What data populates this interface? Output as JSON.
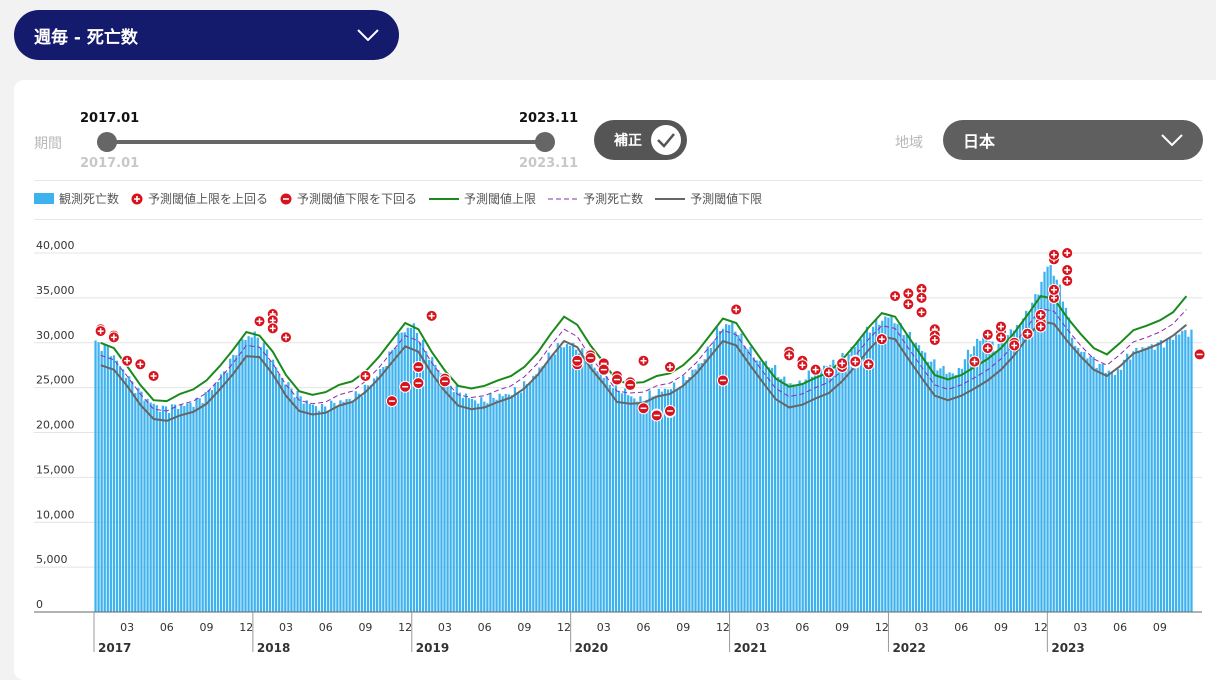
{
  "header": {
    "dropdown_label": "週毎 - 死亡数"
  },
  "controls": {
    "period_label": "期間",
    "range_start": "2017.01",
    "range_end": "2023.11",
    "range_start_sub": "2017.01",
    "range_end_sub": "2023.11",
    "correction_label": "補正",
    "region_label": "地域",
    "region_value": "日本"
  },
  "colors": {
    "observed": "#3db2ef",
    "upper": "#1a8a1a",
    "predicted": "#8e2cab",
    "lower": "#666666",
    "marker": "#d7141e"
  },
  "legend": [
    {
      "key": "observed",
      "label": "観測死亡数",
      "icon": "bar-swatch"
    },
    {
      "key": "above",
      "label": "予測閾値上限を上回る",
      "icon": "plus-circle-icon"
    },
    {
      "key": "below",
      "label": "予測閾値下限を下回る",
      "icon": "minus-circle-icon"
    },
    {
      "key": "upper",
      "label": "予測閾値上限",
      "icon": "solid-line"
    },
    {
      "key": "predicted",
      "label": "予測死亡数",
      "icon": "dashed-line"
    },
    {
      "key": "lower",
      "label": "予測閾値下限",
      "icon": "solid-line"
    }
  ],
  "chart_data": {
    "type": "bar",
    "title": "",
    "xlabel": "",
    "ylabel": "",
    "ylim": [
      0,
      40000
    ],
    "yticks": [
      0,
      5000,
      10000,
      15000,
      20000,
      25000,
      30000,
      35000,
      40000
    ],
    "ytick_labels": [
      "0",
      "5,000",
      "10,000",
      "15,000",
      "20,000",
      "25,000",
      "30,000",
      "35,000",
      "40,000"
    ],
    "x_start": "2017-01",
    "x_end": "2023-11",
    "month_ticks": [
      "03",
      "06",
      "09",
      "12"
    ],
    "years": [
      "2017",
      "2018",
      "2019",
      "2020",
      "2021",
      "2022",
      "2023"
    ],
    "grid": true,
    "legend_position": "top-left",
    "series_names": [
      "観測死亡数",
      "予測閾値上限",
      "予測死亡数",
      "予測閾値下限"
    ],
    "observed_monthly_weekly_avg": [
      30000,
      29300,
      27100,
      25000,
      23500,
      22600,
      22900,
      23100,
      23700,
      25300,
      27300,
      30200,
      31000,
      29000,
      26200,
      24500,
      23300,
      22700,
      23200,
      23600,
      24400,
      25800,
      27900,
      31000,
      32000,
      29000,
      26800,
      25000,
      24000,
      23400,
      23900,
      24200,
      24700,
      26000,
      28000,
      29600,
      29800,
      28500,
      26800,
      25300,
      24500,
      23500,
      24200,
      24800,
      25200,
      26600,
      28300,
      31400,
      32200,
      30000,
      28000,
      27500,
      25800,
      25200,
      26500,
      27400,
      27800,
      29000,
      31000,
      32200,
      33000,
      31400,
      30000,
      28000,
      27000,
      26400,
      29000,
      30800,
      29500,
      31000,
      32500,
      35000,
      39000,
      35500,
      29500,
      28500,
      27300,
      26400,
      28600,
      29400,
      29700,
      30200,
      31200
    ],
    "upper_monthly": [
      30000,
      29400,
      27400,
      25300,
      23600,
      23500,
      24300,
      24800,
      25800,
      27400,
      29200,
      31200,
      30800,
      29000,
      26400,
      24600,
      24200,
      24500,
      25300,
      25700,
      26800,
      28400,
      30300,
      32200,
      31500,
      29000,
      26900,
      25200,
      24900,
      25200,
      25800,
      26300,
      27300,
      28900,
      31000,
      32900,
      32000,
      29700,
      27800,
      25700,
      25500,
      25600,
      26300,
      26600,
      27500,
      28900,
      30800,
      32700,
      32200,
      30000,
      27900,
      26000,
      25100,
      25400,
      26100,
      26700,
      28100,
      29800,
      31700,
      33300,
      32900,
      30700,
      28500,
      26400,
      25900,
      26400,
      27300,
      28200,
      29400,
      31100,
      33100,
      35200,
      34900,
      32800,
      31000,
      29400,
      28700,
      30000,
      31400,
      31900,
      32500,
      33400,
      35200
    ],
    "predicted_monthly": [
      28600,
      28100,
      26300,
      24300,
      22600,
      22400,
      23100,
      23500,
      24400,
      26000,
      27700,
      29700,
      29500,
      27700,
      25300,
      23600,
      23200,
      23400,
      24200,
      24600,
      25700,
      27200,
      29000,
      30800,
      30200,
      27800,
      25800,
      24200,
      23900,
      24100,
      24700,
      25200,
      26200,
      27700,
      29700,
      31500,
      30700,
      28400,
      26600,
      24600,
      24400,
      24500,
      25200,
      25500,
      26400,
      27800,
      29600,
      31400,
      30900,
      28800,
      26800,
      24900,
      24000,
      24300,
      25000,
      25600,
      26900,
      28600,
      30400,
      31900,
      31600,
      29400,
      27300,
      25300,
      24800,
      25300,
      26100,
      27000,
      28200,
      29800,
      31800,
      33800,
      33500,
      31500,
      29700,
      28200,
      27500,
      28700,
      30100,
      30600,
      31200,
      32100,
      33700
    ],
    "lower_monthly": [
      27500,
      27000,
      25200,
      23100,
      21500,
      21300,
      21900,
      22300,
      23200,
      24800,
      26500,
      28500,
      28400,
      26500,
      24100,
      22400,
      22000,
      22200,
      23000,
      23400,
      24500,
      26000,
      27800,
      29600,
      29000,
      26600,
      24600,
      23000,
      22600,
      22800,
      23400,
      23900,
      24900,
      26400,
      28400,
      30200,
      29500,
      27200,
      25400,
      23400,
      23200,
      23300,
      24000,
      24300,
      25200,
      26600,
      28400,
      30200,
      29700,
      27600,
      25600,
      23700,
      22800,
      23100,
      23800,
      24400,
      25700,
      27400,
      29200,
      30700,
      30400,
      28200,
      26100,
      24100,
      23600,
      24100,
      24900,
      25800,
      27000,
      28600,
      30600,
      32400,
      32100,
      30200,
      28500,
      27000,
      26300,
      27400,
      28800,
      29300,
      29900,
      30800,
      32000
    ],
    "above_markers": [
      {
        "x": "2017-01",
        "y": 31500
      },
      {
        "x": "2017-01",
        "y": 31300
      },
      {
        "x": "2017-02",
        "y": 30800
      },
      {
        "x": "2017-02",
        "y": 30600
      },
      {
        "x": "2017-03",
        "y": 28000
      },
      {
        "x": "2017-04",
        "y": 27600
      },
      {
        "x": "2017-05",
        "y": 26300
      },
      {
        "x": "2018-01",
        "y": 32400
      },
      {
        "x": "2018-02",
        "y": 33200
      },
      {
        "x": "2018-02",
        "y": 32500
      },
      {
        "x": "2018-02",
        "y": 31600
      },
      {
        "x": "2018-03",
        "y": 30600
      },
      {
        "x": "2018-09",
        "y": 26300
      },
      {
        "x": "2019-02",
        "y": 33000
      },
      {
        "x": "2020-08",
        "y": 27300
      },
      {
        "x": "2020-06",
        "y": 28000
      },
      {
        "x": "2020-08",
        "y": 27300
      },
      {
        "x": "2021-01",
        "y": 33700
      },
      {
        "x": "2021-05",
        "y": 28800
      },
      {
        "x": "2021-05",
        "y": 29000
      },
      {
        "x": "2021-05",
        "y": 28600
      },
      {
        "x": "2021-06",
        "y": 28000
      },
      {
        "x": "2021-06",
        "y": 27500
      },
      {
        "x": "2021-07",
        "y": 27000
      },
      {
        "x": "2021-08",
        "y": 26700
      },
      {
        "x": "2021-09",
        "y": 27300
      },
      {
        "x": "2021-09",
        "y": 27700
      },
      {
        "x": "2021-10",
        "y": 27800
      },
      {
        "x": "2021-10",
        "y": 28000
      },
      {
        "x": "2021-10",
        "y": 27900
      },
      {
        "x": "2021-11",
        "y": 27600
      },
      {
        "x": "2021-12",
        "y": 30400
      },
      {
        "x": "2022-01",
        "y": 35200
      },
      {
        "x": "2022-02",
        "y": 34300
      },
      {
        "x": "2022-02",
        "y": 35500
      },
      {
        "x": "2022-03",
        "y": 36000
      },
      {
        "x": "2022-03",
        "y": 35000
      },
      {
        "x": "2022-03",
        "y": 33400
      },
      {
        "x": "2022-04",
        "y": 31500
      },
      {
        "x": "2022-04",
        "y": 30800
      },
      {
        "x": "2022-04",
        "y": 30300
      },
      {
        "x": "2022-07",
        "y": 27900
      },
      {
        "x": "2022-08",
        "y": 29400
      },
      {
        "x": "2022-08",
        "y": 30900
      },
      {
        "x": "2022-09",
        "y": 31300
      },
      {
        "x": "2022-09",
        "y": 31800
      },
      {
        "x": "2022-09",
        "y": 30600
      },
      {
        "x": "2022-10",
        "y": 30000
      },
      {
        "x": "2022-10",
        "y": 29700
      },
      {
        "x": "2022-11",
        "y": 31000
      },
      {
        "x": "2022-12",
        "y": 32300
      },
      {
        "x": "2022-12",
        "y": 31800
      },
      {
        "x": "2022-12",
        "y": 33100
      },
      {
        "x": "2023-01",
        "y": 35000
      },
      {
        "x": "2023-01",
        "y": 35900
      },
      {
        "x": "2023-01",
        "y": 39300
      },
      {
        "x": "2023-01",
        "y": 39800
      },
      {
        "x": "2023-02",
        "y": 40000
      },
      {
        "x": "2023-02",
        "y": 36900
      },
      {
        "x": "2023-02",
        "y": 38100
      }
    ],
    "below_markers": [
      {
        "x": "2018-11",
        "y": 23500
      },
      {
        "x": "2018-12",
        "y": 25100
      },
      {
        "x": "2019-01",
        "y": 25500
      },
      {
        "x": "2019-01",
        "y": 27300
      },
      {
        "x": "2019-03",
        "y": 26000
      },
      {
        "x": "2019-03",
        "y": 25700
      },
      {
        "x": "2020-01",
        "y": 27600
      },
      {
        "x": "2020-01",
        "y": 28000
      },
      {
        "x": "2020-02",
        "y": 28600
      },
      {
        "x": "2020-02",
        "y": 28300
      },
      {
        "x": "2020-03",
        "y": 27700
      },
      {
        "x": "2020-03",
        "y": 27000
      },
      {
        "x": "2020-04",
        "y": 26300
      },
      {
        "x": "2020-04",
        "y": 25900
      },
      {
        "x": "2020-05",
        "y": 25600
      },
      {
        "x": "2020-05",
        "y": 25300
      },
      {
        "x": "2020-06",
        "y": 22700
      },
      {
        "x": "2020-07",
        "y": 22000
      },
      {
        "x": "2020-07",
        "y": 21900
      },
      {
        "x": "2020-08",
        "y": 22300
      },
      {
        "x": "2020-08",
        "y": 22400
      },
      {
        "x": "2020-12",
        "y": 25800
      },
      {
        "x": "2023-12",
        "y": 28700
      }
    ]
  }
}
